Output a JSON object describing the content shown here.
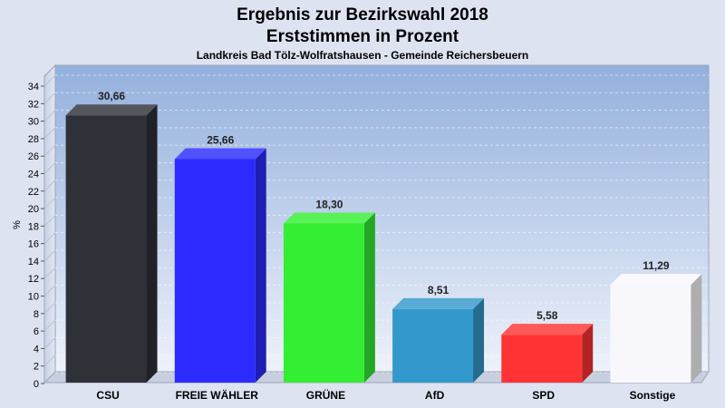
{
  "title_line1": "Ergebnis zur Bezirkswahl 2018",
  "title_line2": "Erststimmen in Prozent",
  "subtitle": "Landkreis Bad Tölz-Wolfratshausen - Gemeinde Reichersbeuern",
  "chart_data": {
    "type": "bar",
    "ylabel": "%",
    "ylim": [
      0,
      34
    ],
    "ytick_step": 2,
    "grid": true,
    "categories": [
      "CSU",
      "FREIE WÄHLER",
      "GRÜNE",
      "AfD",
      "SPD",
      "Sonstige"
    ],
    "values": [
      30.66,
      25.66,
      18.3,
      8.51,
      5.58,
      11.29
    ],
    "value_labels": [
      "30,66",
      "25,66",
      "18,30",
      "8,51",
      "5,58",
      "11,29"
    ],
    "colors": [
      "#2e3138",
      "#2b2bff",
      "#33ee33",
      "#3399cc",
      "#ff3333",
      "#f8f8fc"
    ]
  }
}
